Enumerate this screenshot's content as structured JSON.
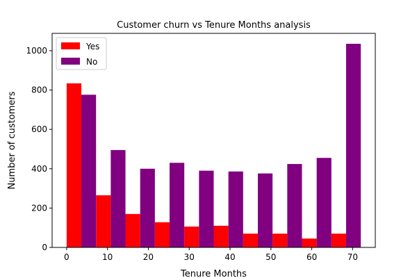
{
  "chart_data": {
    "type": "bar",
    "title": "Customer churn vs Tenure Months analysis",
    "xlabel": "Tenure Months",
    "ylabel": "Number of customers",
    "xlim": [
      -3.55,
      75.55
    ],
    "ylim": [
      0,
      1088
    ],
    "xticks": [
      0,
      10,
      20,
      30,
      40,
      50,
      60,
      70
    ],
    "yticks": [
      0,
      200,
      400,
      600,
      800,
      1000
    ],
    "bin_edges": [
      0,
      7.2,
      14.4,
      21.6,
      28.8,
      36,
      43.2,
      50.4,
      57.6,
      64.8,
      72
    ],
    "series": [
      {
        "name": "Yes",
        "color": "#ff0000",
        "values": [
          834,
          265,
          170,
          128,
          106,
          110,
          70,
          70,
          45,
          70
        ]
      },
      {
        "name": "No",
        "color": "#800080",
        "values": [
          776,
          495,
          400,
          430,
          390,
          386,
          376,
          424,
          455,
          1035
        ]
      }
    ],
    "legend_position": "upper-left",
    "grid": false
  }
}
